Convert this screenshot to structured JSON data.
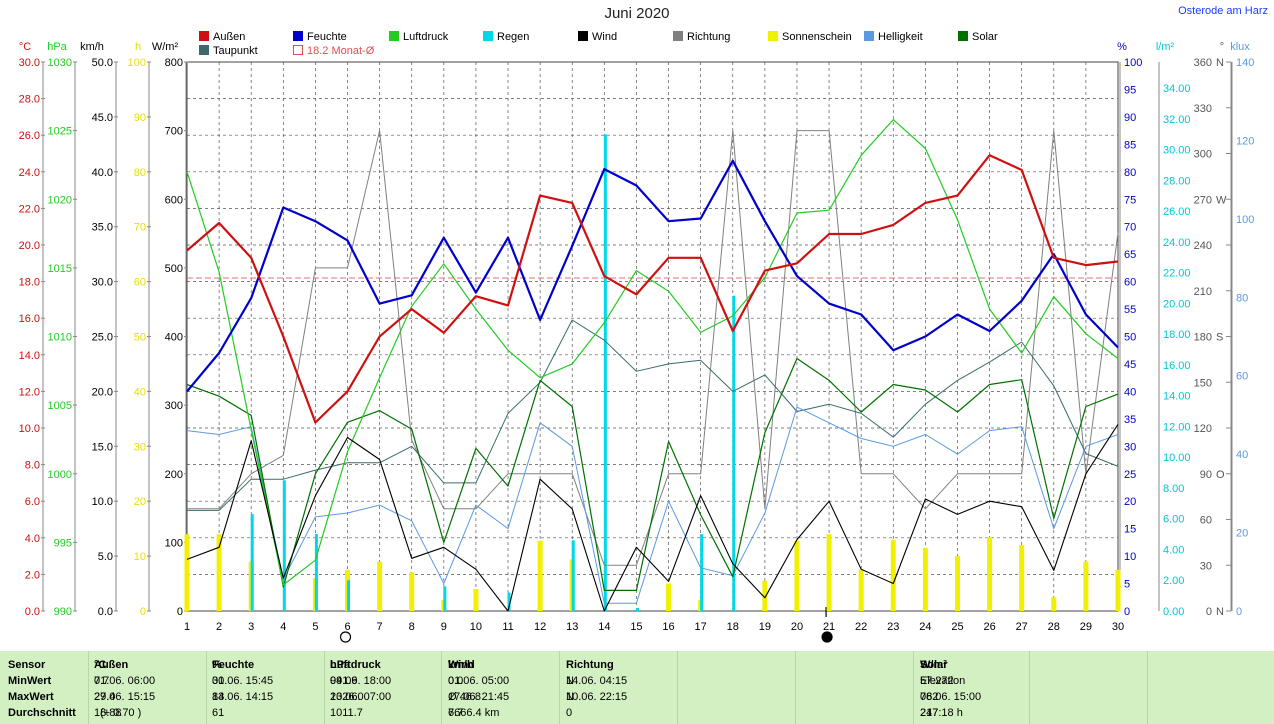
{
  "title": "Juni 2020",
  "station": "Osterode am Harz",
  "legend": [
    {
      "label": "Außen",
      "color": "#d01010"
    },
    {
      "label": "Feuchte",
      "color": "#0000cc"
    },
    {
      "label": "Luftdruck",
      "color": "#22cc22"
    },
    {
      "label": "Regen",
      "color": "#00d8e8"
    },
    {
      "label": "Wind",
      "color": "#000000"
    },
    {
      "label": "Richtung",
      "color": "#808080"
    },
    {
      "label": "Sonnenschein",
      "color": "#f0f000"
    },
    {
      "label": "Helligkeit",
      "color": "#5a9ae0"
    },
    {
      "label": "Solar",
      "color": "#007000"
    },
    {
      "label": "Taupunkt",
      "color": "#3a6a6a"
    },
    {
      "label": "18.2 Monat-Ø",
      "color": "#e05050"
    }
  ],
  "axis_units": {
    "temp": "°C",
    "pressure": "hPa",
    "wind": "km/h",
    "sun": "h",
    "solar": "W/m²",
    "humidity": "%",
    "rain": "l/m²",
    "direction": "°",
    "lux": "klux"
  },
  "chart_data": {
    "type": "line",
    "x": [
      1,
      2,
      3,
      4,
      5,
      6,
      7,
      8,
      9,
      10,
      11,
      12,
      13,
      14,
      15,
      16,
      17,
      18,
      19,
      20,
      21,
      22,
      23,
      24,
      25,
      26,
      27,
      28,
      29,
      30
    ],
    "xlim": [
      1,
      30
    ],
    "axes": {
      "temp": {
        "label": "°C",
        "ylim": [
          0,
          30
        ],
        "ticks": [
          "0.0",
          "2.0",
          "4.0",
          "6.0",
          "8.0",
          "10.0",
          "12.0",
          "14.0",
          "16.0",
          "18.0",
          "20.0",
          "22.0",
          "24.0",
          "26.0",
          "28.0",
          "30.0"
        ]
      },
      "pressure": {
        "label": "hPa",
        "ylim": [
          990,
          1030
        ],
        "ticks": [
          "990",
          "995",
          "1000",
          "1005",
          "1010",
          "1015",
          "1020",
          "1025",
          "1030"
        ]
      },
      "wind": {
        "label": "km/h",
        "ylim": [
          0,
          50
        ],
        "ticks": [
          "0.0",
          "5.0",
          "10.0",
          "15.0",
          "20.0",
          "25.0",
          "30.0",
          "35.0",
          "40.0",
          "45.0",
          "50.0"
        ]
      },
      "sun": {
        "label": "h",
        "ylim": [
          0,
          100
        ],
        "ticks": [
          "0",
          "10",
          "20",
          "30",
          "40",
          "50",
          "60",
          "70",
          "80",
          "90",
          "100"
        ]
      },
      "solar": {
        "label": "W/m²",
        "ylim": [
          0,
          800
        ],
        "ticks": [
          "0",
          "100",
          "200",
          "300",
          "400",
          "500",
          "600",
          "700",
          "800"
        ]
      },
      "humidity": {
        "label": "%",
        "ylim": [
          0,
          100
        ],
        "ticks": [
          "0",
          "5",
          "10",
          "15",
          "20",
          "25",
          "30",
          "35",
          "40",
          "45",
          "50",
          "55",
          "60",
          "65",
          "70",
          "75",
          "80",
          "85",
          "90",
          "95",
          "100"
        ]
      },
      "rain": {
        "label": "l/m²",
        "ylim": [
          0,
          35.7
        ],
        "ticks": [
          "0.00",
          "2.00",
          "4.00",
          "6.00",
          "8.00",
          "10.00",
          "12.00",
          "14.00",
          "16.00",
          "18.00",
          "20.00",
          "22.00",
          "24.00",
          "26.00",
          "28.00",
          "30.00",
          "32.00",
          "34.00"
        ]
      },
      "direction": {
        "label": "°",
        "ylim": [
          0,
          360
        ],
        "ticks": [
          [
            "0",
            "N"
          ],
          [
            "30",
            ""
          ],
          [
            "60",
            ""
          ],
          [
            "90",
            "O"
          ],
          [
            "120",
            ""
          ],
          [
            "150",
            ""
          ],
          [
            "180",
            "S"
          ],
          [
            "210",
            ""
          ],
          [
            "240",
            ""
          ],
          [
            "270",
            "W"
          ],
          [
            "300",
            ""
          ],
          [
            "330",
            ""
          ],
          [
            "360",
            "N"
          ]
        ]
      },
      "lux": {
        "label": "klux",
        "ylim": [
          0,
          140
        ],
        "ticks": [
          "0",
          "20",
          "40",
          "60",
          "80",
          "100",
          "120",
          "140"
        ]
      }
    },
    "reference_line": {
      "label": "18.2 Monat-Ø",
      "value": 18.2,
      "axis": "temp"
    },
    "series": [
      {
        "name": "Außen",
        "axis": "temp",
        "color": "#d01010",
        "width": 2.2,
        "values": [
          19.7,
          21.2,
          19.3,
          15.0,
          10.3,
          12.0,
          15.0,
          16.5,
          15.2,
          17.2,
          16.7,
          22.7,
          22.3,
          18.3,
          17.3,
          19.3,
          19.3,
          15.3,
          18.6,
          19.0,
          20.6,
          20.6,
          21.1,
          22.3,
          22.7,
          24.9,
          24.1,
          19.3,
          18.9,
          19.1
        ]
      },
      {
        "name": "Feuchte",
        "axis": "humidity",
        "color": "#0000cc",
        "width": 2.2,
        "values": [
          40,
          47,
          57,
          73.5,
          71,
          67.5,
          56,
          57.5,
          68,
          58,
          68,
          53,
          66.5,
          80.5,
          77.5,
          71,
          71.5,
          82,
          71,
          61,
          56,
          54,
          47.5,
          50,
          54,
          51,
          56.5,
          65,
          54,
          48
        ]
      },
      {
        "name": "Luftdruck",
        "axis": "pressure",
        "color": "#22cc22",
        "width": 1.2,
        "values": [
          1022.0,
          1014.7,
          1003.2,
          991.9,
          993.7,
          1001.6,
          1007.0,
          1012.2,
          1015.3,
          1012.0,
          1009.0,
          1007.0,
          1008.0,
          1011.0,
          1014.8,
          1013.3,
          1010.3,
          1011.5,
          1014.3,
          1019.0,
          1019.2,
          1023.2,
          1025.8,
          1023.7,
          1018.5,
          1012.0,
          1008.8,
          1012.9,
          1010.2,
          1008.4
        ]
      },
      {
        "name": "Taupunkt",
        "axis": "temp",
        "color": "#3a6a6a",
        "width": 1.0,
        "values": [
          5.5,
          5.5,
          7.2,
          7.2,
          7.7,
          8.1,
          8.1,
          9.0,
          7.0,
          7.0,
          10.8,
          12.5,
          15.9,
          14.8,
          13.1,
          13.5,
          13.7,
          12.0,
          12.9,
          10.9,
          11.3,
          10.8,
          9.5,
          11.3,
          12.6,
          13.6,
          14.7,
          12.3,
          8.6,
          7.9
        ]
      },
      {
        "name": "Wind",
        "axis": "wind",
        "color": "#000000",
        "width": 1.1,
        "values": [
          4.7,
          5.8,
          15.5,
          3.0,
          10.5,
          15.8,
          13.8,
          4.8,
          5.8,
          3.8,
          0.0,
          12.0,
          9.3,
          0.0,
          5.8,
          2.7,
          10.5,
          4.3,
          1.2,
          6.5,
          10.0,
          3.8,
          2.5,
          10.2,
          8.8,
          10.0,
          9.5,
          3.7,
          12.5,
          17.0
        ]
      },
      {
        "name": "Richtung",
        "axis": "direction",
        "color": "#808080",
        "width": 1.0,
        "values": [
          67,
          67,
          90,
          102,
          225,
          225,
          315,
          112,
          67,
          67,
          90,
          90,
          90,
          30,
          30,
          90,
          90,
          315,
          67,
          315,
          315,
          90,
          90,
          67,
          90,
          90,
          90,
          315,
          90,
          248
        ]
      },
      {
        "name": "Helligkeit",
        "axis": "lux",
        "color": "#5a9ae0",
        "width": 1.0,
        "values": [
          46,
          45,
          47,
          8,
          24,
          25,
          27,
          23,
          7,
          27,
          21,
          48,
          42,
          2,
          2,
          28,
          11,
          9,
          25,
          52,
          48,
          44,
          42,
          45,
          40,
          46,
          47,
          21,
          42,
          45
        ]
      },
      {
        "name": "Solar",
        "axis": "solar",
        "color": "#007000",
        "width": 1.2,
        "values": [
          330,
          313,
          285,
          35,
          200,
          275,
          292,
          265,
          100,
          237,
          182,
          336,
          298,
          30,
          30,
          247,
          140,
          50,
          260,
          368,
          336,
          290,
          330,
          322,
          290,
          330,
          337,
          135,
          298,
          316
        ]
      }
    ],
    "bars": [
      {
        "name": "Sonnenschein",
        "axis": "sun",
        "color": "#f0f000",
        "values": [
          14,
          14,
          9,
          0,
          6,
          7.5,
          9,
          7,
          2,
          4,
          0,
          12.8,
          9.4,
          0,
          0,
          5,
          2,
          0,
          5.5,
          12.8,
          14,
          7.5,
          13,
          11.5,
          10,
          13.5,
          12,
          2.5,
          9,
          7.5
        ]
      },
      {
        "name": "Regen",
        "axis": "rain",
        "color": "#00d8e8",
        "values": [
          0,
          0,
          6.3,
          8.5,
          5.0,
          2.0,
          0,
          0,
          1.6,
          0,
          1.2,
          0,
          4.6,
          31.0,
          0.2,
          0,
          5.0,
          20.5,
          0,
          0,
          0,
          0,
          0,
          0,
          0,
          0,
          0,
          0,
          0,
          0
        ]
      }
    ],
    "grid": true
  },
  "stats": {
    "sensor": {
      "title": "Sensor",
      "rows": [
        "MinWert",
        "MaxWert",
        "Durchschnitt"
      ]
    },
    "aussen": {
      "title": "Außen",
      "unit": "°C",
      "rows": [
        [
          "01.06.  06:00",
          "7.7"
        ],
        [
          "27.06.  15:15",
          "29.4"
        ],
        [
          "(+ 0.70 )",
          "18.88"
        ]
      ]
    },
    "feuchte": {
      "title": "Feuchte",
      "unit": "%",
      "rows": [
        [
          "01.06.  15:45",
          "30"
        ],
        [
          "14.06.  14:15",
          "83"
        ],
        [
          "",
          "61"
        ]
      ]
    },
    "luftdruck": {
      "title": "Luftdruck",
      "unit": "hPa",
      "rows": [
        [
          "04.06.  18:00",
          "991.9"
        ],
        [
          "23.06.  07:00",
          "1026.0"
        ],
        [
          "",
          "1011.7"
        ]
      ]
    },
    "wind": {
      "title": "Wind",
      "unit": "km/h",
      "rows": [
        [
          "01.06.  05:00",
          "0.0"
        ],
        [
          "17.06.  21:45",
          "Ø 46.8"
        ],
        [
          "6666.4 km",
          "7.7"
        ]
      ]
    },
    "richtung": {
      "title": "Richtung",
      "rows": [
        [
          "14.06.  04:15",
          "N"
        ],
        [
          "10.06.  22:15",
          "N"
        ],
        [
          "",
          "0"
        ]
      ]
    },
    "solar": {
      "title": "Solar",
      "unit": "W/m²",
      "rows": [
        [
          "Elevation",
          "57.272"
        ],
        [
          "06.06.  15:00",
          "782"
        ],
        [
          "217:18 h",
          "247"
        ]
      ]
    }
  }
}
